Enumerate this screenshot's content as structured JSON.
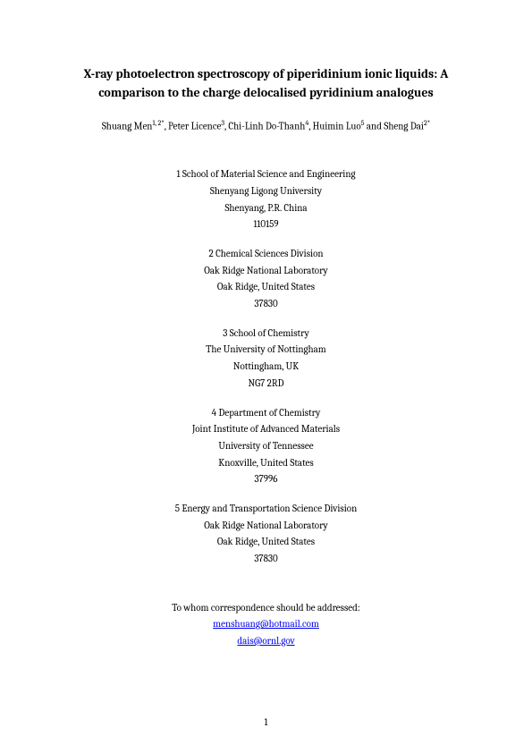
{
  "title_line1": "X-ray photoelectron spectroscopy of piperidinium ionic liquids: A",
  "title_line2": "comparison to the charge delocalised pyridinium analogues",
  "authors_html": "Shuang Men",
  "author_sup1": "1, 2*",
  "author2": ", Peter Licence",
  "author_sup2": "3",
  "author3": ", Chi-Linh Do-Thanh",
  "author_sup3": "4",
  "author4": ", Huimin Luo",
  "author_sup4": "5",
  "author5": " and Sheng Dai",
  "author_sup5": "2*",
  "affiliations": [
    {
      "lines": [
        "1 School of Material Science and Engineering",
        "Shenyang Ligong University",
        "Shenyang, P.R. China",
        "110159"
      ]
    },
    {
      "lines": [
        "2 Chemical Sciences Division",
        "Oak Ridge National Laboratory",
        "Oak Ridge, United States",
        "37830"
      ]
    },
    {
      "lines": [
        "3 School of Chemistry",
        "The University of Nottingham",
        "Nottingham, UK",
        "NG7 2RD"
      ]
    },
    {
      "lines": [
        "4 Department of Chemistry",
        "Joint Institute of Advanced Materials",
        "University of Tennessee",
        "Knoxville, United States",
        "37996"
      ]
    },
    {
      "lines": [
        "5 Energy and Transportation Science Division",
        "Oak Ridge National Laboratory",
        "Oak Ridge, United States",
        "37830"
      ]
    }
  ],
  "correspondence_label": "To whom correspondence should be addressed:",
  "email1": "menshuang@hotmail.com",
  "email2": "dais@ornl.gov",
  "page_number": "1"
}
